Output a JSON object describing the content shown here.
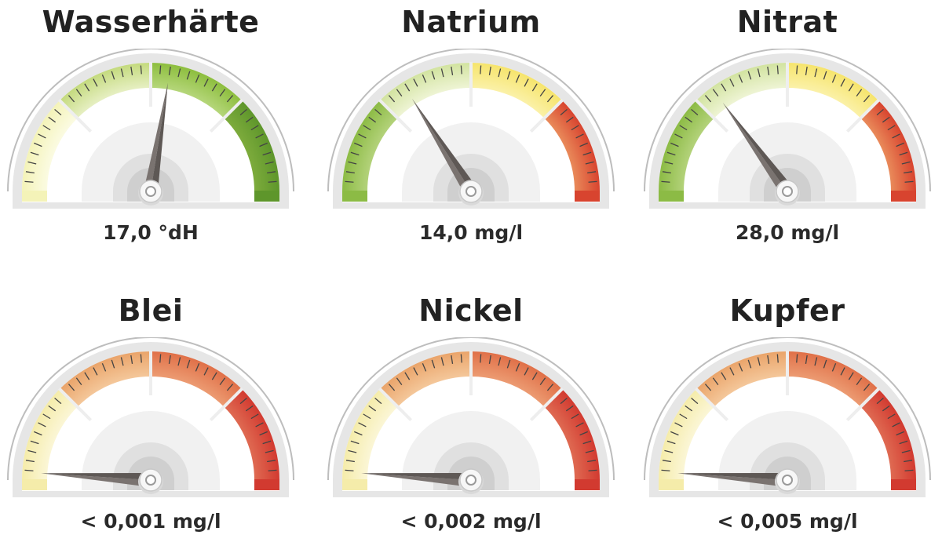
{
  "gauges": [
    {
      "title": "Wasserhärte",
      "value_label": "17,0 °dH",
      "needle_fraction": 0.55,
      "zones": [
        "#f4f3b8",
        "#c4da7e",
        "#8dbe3e",
        "#5e962b"
      ],
      "zone_inner": [
        "#fbfbe2",
        "#e6efc2",
        "#b5d67a",
        "#7dab3c"
      ]
    },
    {
      "title": "Natrium",
      "value_label": "14,0 mg/l",
      "needle_fraction": 0.32,
      "zones": [
        "#8cbb45",
        "#d2e3a0",
        "#f6e46c",
        "#d8442f"
      ],
      "zone_inner": [
        "#b3d27a",
        "#eef4d4",
        "#fbf1a8",
        "#e98a5a"
      ]
    },
    {
      "title": "Nitrat",
      "value_label": "28,0 mg/l",
      "needle_fraction": 0.3,
      "zones": [
        "#8cbb45",
        "#d2e3a0",
        "#f6e46c",
        "#d8442f"
      ],
      "zone_inner": [
        "#b3d27a",
        "#eef4d4",
        "#fbf1a8",
        "#e98a5a"
      ]
    },
    {
      "title": "Blei",
      "value_label": "< 0,001 mg/l",
      "needle_fraction": 0.02,
      "zones": [
        "#f5ecaa",
        "#eaa46a",
        "#e07048",
        "#d23a30"
      ],
      "zone_inner": [
        "#fbf6d6",
        "#f4c79a",
        "#ec9b72",
        "#df6a52"
      ]
    },
    {
      "title": "Nickel",
      "value_label": "< 0,002 mg/l",
      "needle_fraction": 0.02,
      "zones": [
        "#f5ecaa",
        "#eaa46a",
        "#e07048",
        "#d23a30"
      ],
      "zone_inner": [
        "#fbf6d6",
        "#f4c79a",
        "#ec9b72",
        "#df6a52"
      ]
    },
    {
      "title": "Kupfer",
      "value_label": "< 0,005 mg/l",
      "needle_fraction": 0.02,
      "zones": [
        "#f5ecaa",
        "#eaa46a",
        "#e07048",
        "#d23a30"
      ],
      "zone_inner": [
        "#fbf6d6",
        "#f4c79a",
        "#ec9b72",
        "#df6a52"
      ]
    }
  ],
  "colors": {
    "needle": "#7a7370",
    "needle_dark": "#5e5855",
    "tick": "#444444",
    "bezel": "#e6e6e6",
    "bezel_edge": "#bdbdbd"
  }
}
